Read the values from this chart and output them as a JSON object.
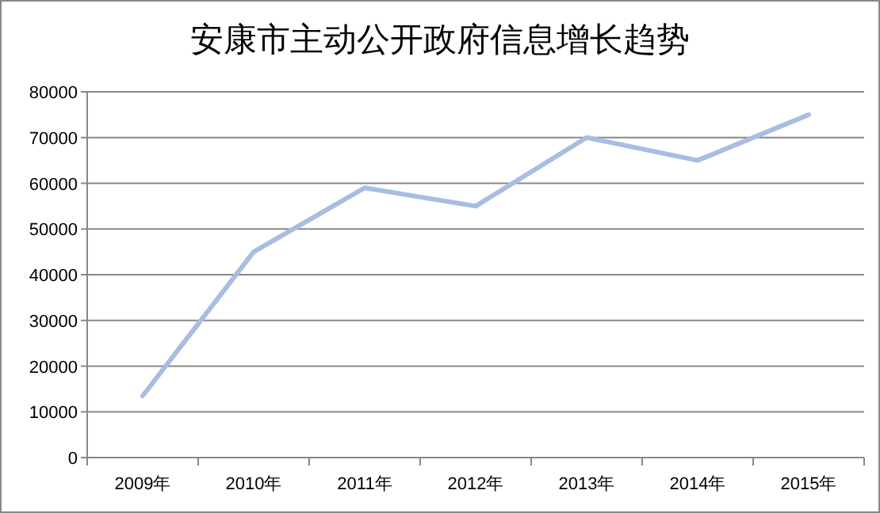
{
  "chart_data": {
    "type": "line",
    "title": "安康市主动公开政府信息增长趋势",
    "categories": [
      "2009年",
      "2010年",
      "2011年",
      "2012年",
      "2013年",
      "2014年",
      "2015年"
    ],
    "series": [
      {
        "color": "#a9bde2",
        "values": [
          13500,
          45000,
          59000,
          55000,
          70000,
          65000,
          75000
        ]
      }
    ],
    "ylim": [
      0,
      80000
    ],
    "yticks": [
      0,
      10000,
      20000,
      30000,
      40000,
      50000,
      60000,
      70000,
      80000
    ],
    "grid": "y",
    "marker": "none",
    "line_style": "solid"
  }
}
